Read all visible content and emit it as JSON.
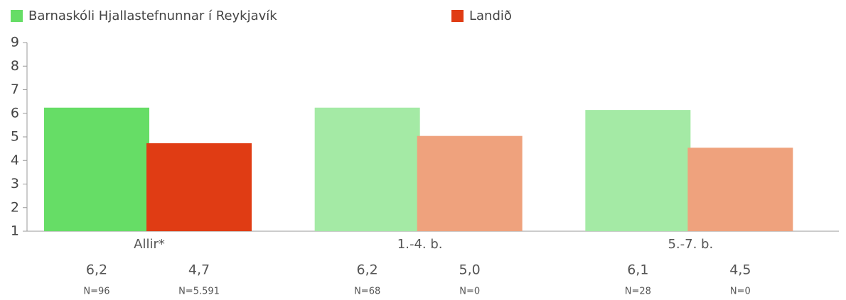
{
  "chart_data": {
    "type": "bar",
    "categories": [
      "Allir*",
      "1.-4. b.",
      "5.-7. b."
    ],
    "series": [
      {
        "name": "Barnaskóli Hjallastefnunnar í Reykjavík",
        "color": "#66dd66",
        "colors": [
          "#66dd66",
          "#a4eaa5",
          "#a4eaa5"
        ],
        "values": [
          6.24,
          6.24,
          6.14
        ],
        "value_labels": [
          "6,2",
          "6,2",
          "6,1"
        ],
        "n_labels": [
          "N=96",
          "N=68",
          "N=28"
        ]
      },
      {
        "name": "Landið",
        "color": "#e03c14",
        "colors": [
          "#e03c14",
          "#efa27d",
          "#efa27d"
        ],
        "values": [
          4.73,
          5.04,
          4.54
        ],
        "value_labels": [
          "4,7",
          "5,0",
          "4,5"
        ],
        "n_labels": [
          "N=5.591",
          "N=0",
          "N=0"
        ]
      }
    ],
    "ylim": [
      1,
      9
    ],
    "yticks": [
      1,
      2,
      3,
      4,
      5,
      6,
      7,
      8,
      9
    ]
  }
}
